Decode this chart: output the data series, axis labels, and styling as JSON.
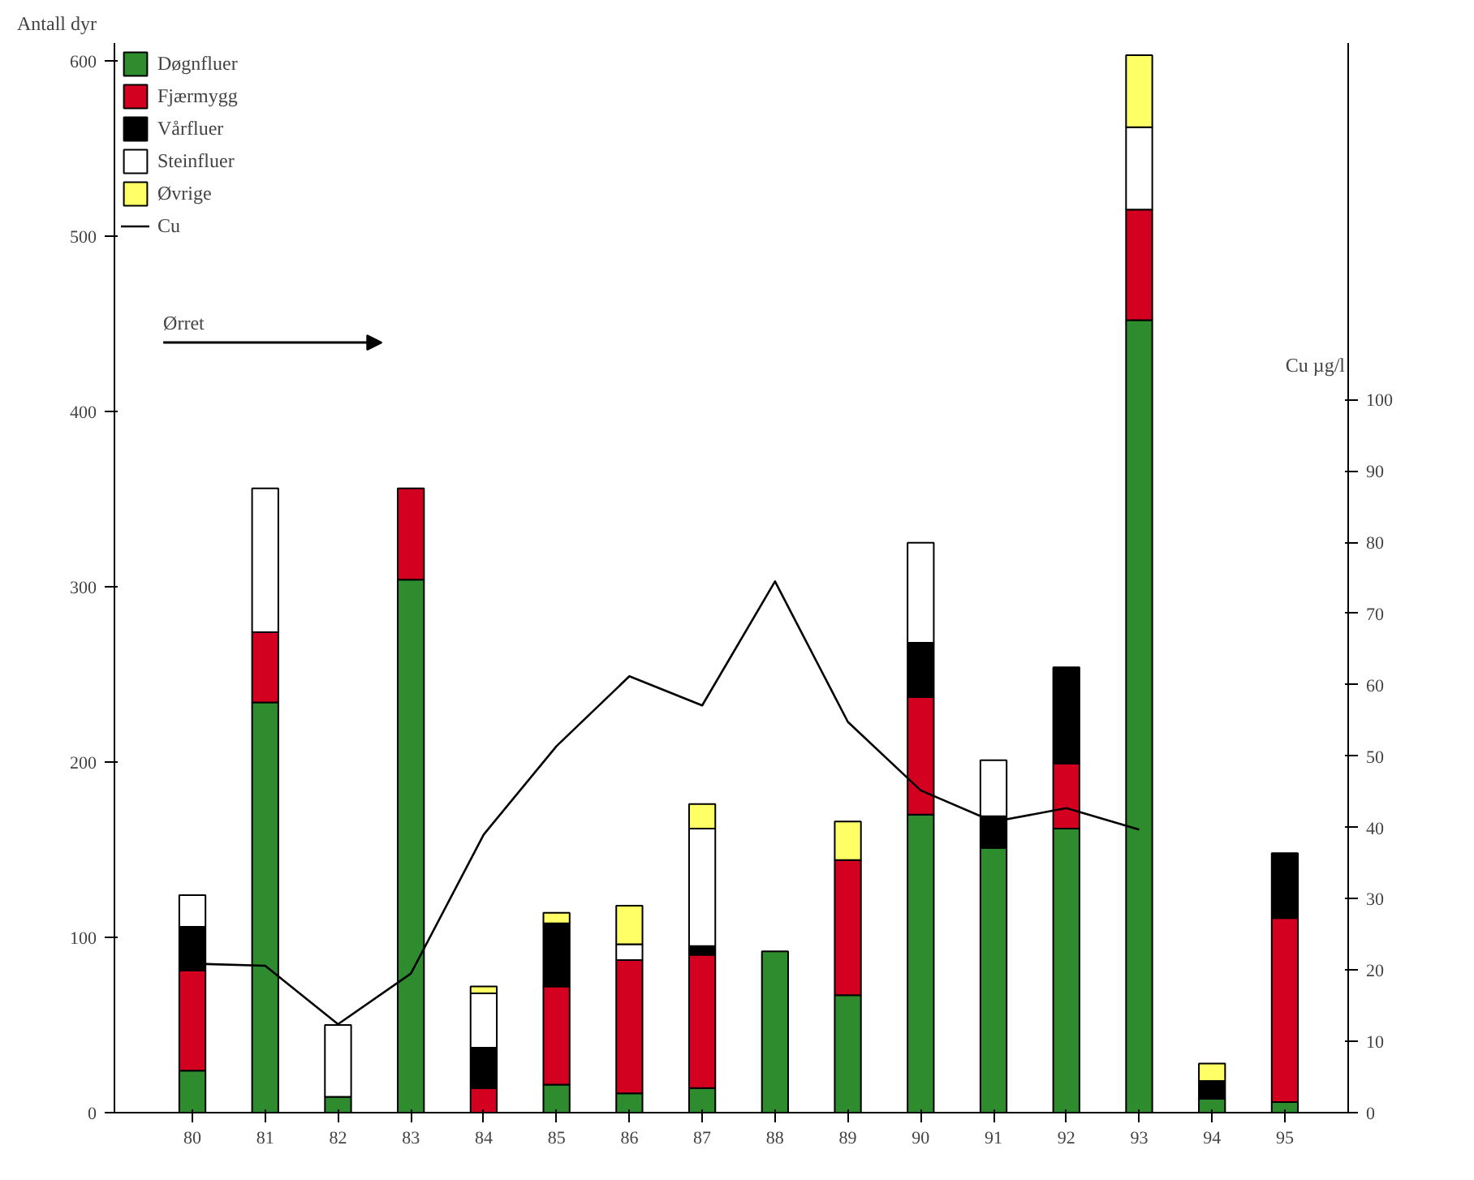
{
  "chart_data": {
    "type": "bar",
    "stacked": true,
    "ylabel": "Antall dyr",
    "y2label": "Cu µg/l",
    "categories": [
      "80",
      "81",
      "82",
      "83",
      "84",
      "85",
      "86",
      "87",
      "88",
      "89",
      "90",
      "91",
      "92",
      "93",
      "94",
      "95"
    ],
    "series": [
      {
        "name": "Døgnfluer",
        "color": "#2e8b2e",
        "values": [
          24,
          234,
          9,
          304,
          0,
          16,
          11,
          14,
          92,
          67,
          170,
          151,
          162,
          452,
          8,
          6
        ]
      },
      {
        "name": "Fjærmygg",
        "color": "#d40020",
        "values": [
          57,
          40,
          0,
          52,
          14,
          56,
          76,
          76,
          0,
          77,
          67,
          0,
          37,
          63,
          0,
          105
        ]
      },
      {
        "name": "Vårfluer",
        "color": "#000000",
        "values": [
          25,
          0,
          0,
          0,
          23,
          36,
          0,
          5,
          0,
          0,
          31,
          18,
          55,
          0,
          10,
          37
        ]
      },
      {
        "name": "Steinfluer",
        "color": "#ffffff",
        "values": [
          18,
          82,
          41,
          0,
          31,
          0,
          9,
          67,
          0,
          0,
          57,
          32,
          0,
          47,
          0,
          0
        ]
      },
      {
        "name": "Øvrige",
        "color": "#ffff66",
        "values": [
          0,
          0,
          0,
          0,
          4,
          6,
          22,
          14,
          0,
          22,
          0,
          0,
          0,
          41,
          10,
          0
        ]
      },
      {
        "name": "Cu",
        "type": "line",
        "axis": "y2",
        "color": "#000000",
        "values": [
          20.9,
          20.6,
          12.4,
          19.5,
          39,
          51.4,
          61.2,
          57.1,
          74.5,
          54.8,
          45.2,
          40.8,
          42.7,
          39.7,
          null,
          null
        ]
      }
    ],
    "ylim": [
      0,
      610
    ],
    "yticks": [
      0,
      100,
      200,
      300,
      400,
      500,
      600
    ],
    "y2lim": [
      0,
      150
    ],
    "y2ticks": [
      0,
      10,
      20,
      30,
      40,
      50,
      60,
      70,
      80,
      90,
      100
    ],
    "annotations": [
      "Ørret"
    ],
    "grid": false,
    "legend": "top left",
    "marker": "none",
    "line_style": "solid"
  }
}
